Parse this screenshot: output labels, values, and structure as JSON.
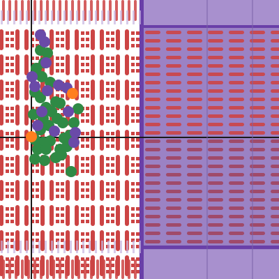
{
  "colors": {
    "background": "#ffffff",
    "red_tile": "#cc4444",
    "purple_zone": "#9b82c4",
    "purple_zone_top": "#a890ce",
    "purple_stripe": "#6a3fa8",
    "green_unit": "#2f8a45",
    "purple_unit": "#6a4aa8",
    "orange_unit": "#ff7f1e",
    "grid_line": "#1a1a1a",
    "tick": "#d9d9d9"
  },
  "units": {
    "green_count": 34,
    "purple_count": 14,
    "orange_count": 2
  }
}
